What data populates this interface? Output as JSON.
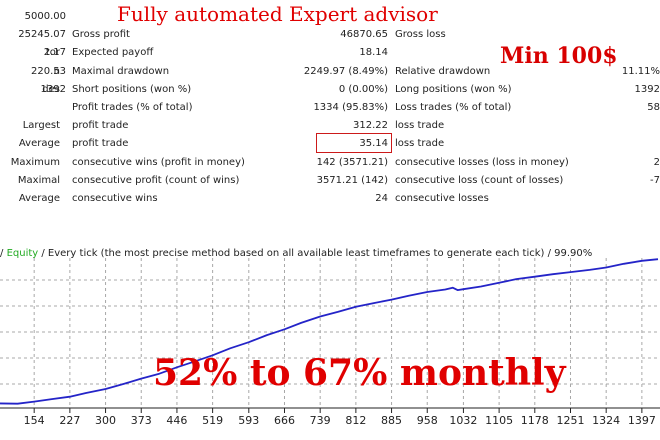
{
  "title": "Fully automated Expert advisor",
  "min_deposit": "Min 100$",
  "headline": "52% to 67% monthly",
  "accent_color": "#e00000",
  "equity_color": "#2424c8",
  "rows": [
    {
      "lval": "5000.00"
    },
    {
      "lval": "25245.07",
      "mlabel": "Gross profit",
      "mval": "46870.65",
      "rlabel": "Gross loss"
    },
    {
      "llabel": "tor",
      "lval": "2.17",
      "mlabel": "Expected payoff",
      "mval": "18.14"
    },
    {
      "llabel": "n",
      "lval": "220.53",
      "mlabel": "Maximal drawdown",
      "mval": "2249.97 (8.49%)",
      "rlabel": "Relative drawdown",
      "rval": "11.11%"
    },
    {
      "llabel": "des",
      "lval": "1392",
      "mlabel": "Short positions (won %)",
      "mval": "0 (0.00%)",
      "rlabel": "Long positions (won %)",
      "rval": "1392"
    },
    {
      "mlabel": "Profit trades (% of total)",
      "mval": "1334 (95.83%)",
      "rlabel": "Loss trades (% of total)",
      "rval": "58"
    },
    {
      "llabel": "Largest",
      "mlabel": "profit trade",
      "mval": "312.22",
      "rlabel": "loss trade"
    },
    {
      "llabel": "Average",
      "mlabel": "profit trade",
      "mval": "35.14",
      "rlabel": "loss trade"
    },
    {
      "llabel": "Maximum",
      "mlabel": "consecutive wins (profit in money)",
      "mval": "142 (3571.21)",
      "rlabel": "consecutive losses (loss in money)",
      "rval": "2"
    },
    {
      "llabel": "Maximal",
      "mlabel": "consecutive profit (count of wins)",
      "mval": "3571.21 (142)",
      "rlabel": "consecutive loss (count of losses)",
      "rval": "-7"
    },
    {
      "llabel": "Average",
      "mlabel": "consecutive wins",
      "mval": "24",
      "rlabel": "consecutive losses"
    }
  ],
  "legend": {
    "sep": "/",
    "equity": "Equity",
    "model": "/ Every tick (the most precise method based on all available least timeframes to generate each tick) / 99.90%"
  },
  "chart_data": {
    "type": "line",
    "x_ticks": [
      "154",
      "227",
      "300",
      "373",
      "446",
      "519",
      "593",
      "666",
      "739",
      "812",
      "885",
      "958",
      "1032",
      "1105",
      "1178",
      "1251",
      "1324",
      "1397"
    ],
    "series": [
      {
        "values": [
          [
            80,
            5750
          ],
          [
            120,
            5700
          ],
          [
            154,
            6050
          ],
          [
            190,
            6450
          ],
          [
            227,
            6850
          ],
          [
            260,
            7450
          ],
          [
            300,
            8100
          ],
          [
            340,
            9000
          ],
          [
            373,
            9800
          ],
          [
            410,
            10600
          ],
          [
            446,
            11650
          ],
          [
            480,
            12550
          ],
          [
            519,
            13600
          ],
          [
            555,
            14750
          ],
          [
            593,
            15750
          ],
          [
            630,
            16900
          ],
          [
            666,
            17850
          ],
          [
            700,
            18900
          ],
          [
            739,
            19950
          ],
          [
            775,
            20700
          ],
          [
            812,
            21550
          ],
          [
            850,
            22150
          ],
          [
            885,
            22700
          ],
          [
            920,
            23350
          ],
          [
            958,
            23950
          ],
          [
            995,
            24350
          ],
          [
            1010,
            24650
          ],
          [
            1020,
            24250
          ],
          [
            1032,
            24400
          ],
          [
            1068,
            24850
          ],
          [
            1105,
            25450
          ],
          [
            1140,
            26050
          ],
          [
            1178,
            26450
          ],
          [
            1215,
            26850
          ],
          [
            1251,
            27200
          ],
          [
            1290,
            27550
          ],
          [
            1324,
            27950
          ],
          [
            1360,
            28550
          ],
          [
            1397,
            29050
          ],
          [
            1430,
            29300
          ]
        ]
      }
    ],
    "xlim": [
      80,
      1430
    ],
    "ylim": [
      5000,
      29500
    ]
  }
}
